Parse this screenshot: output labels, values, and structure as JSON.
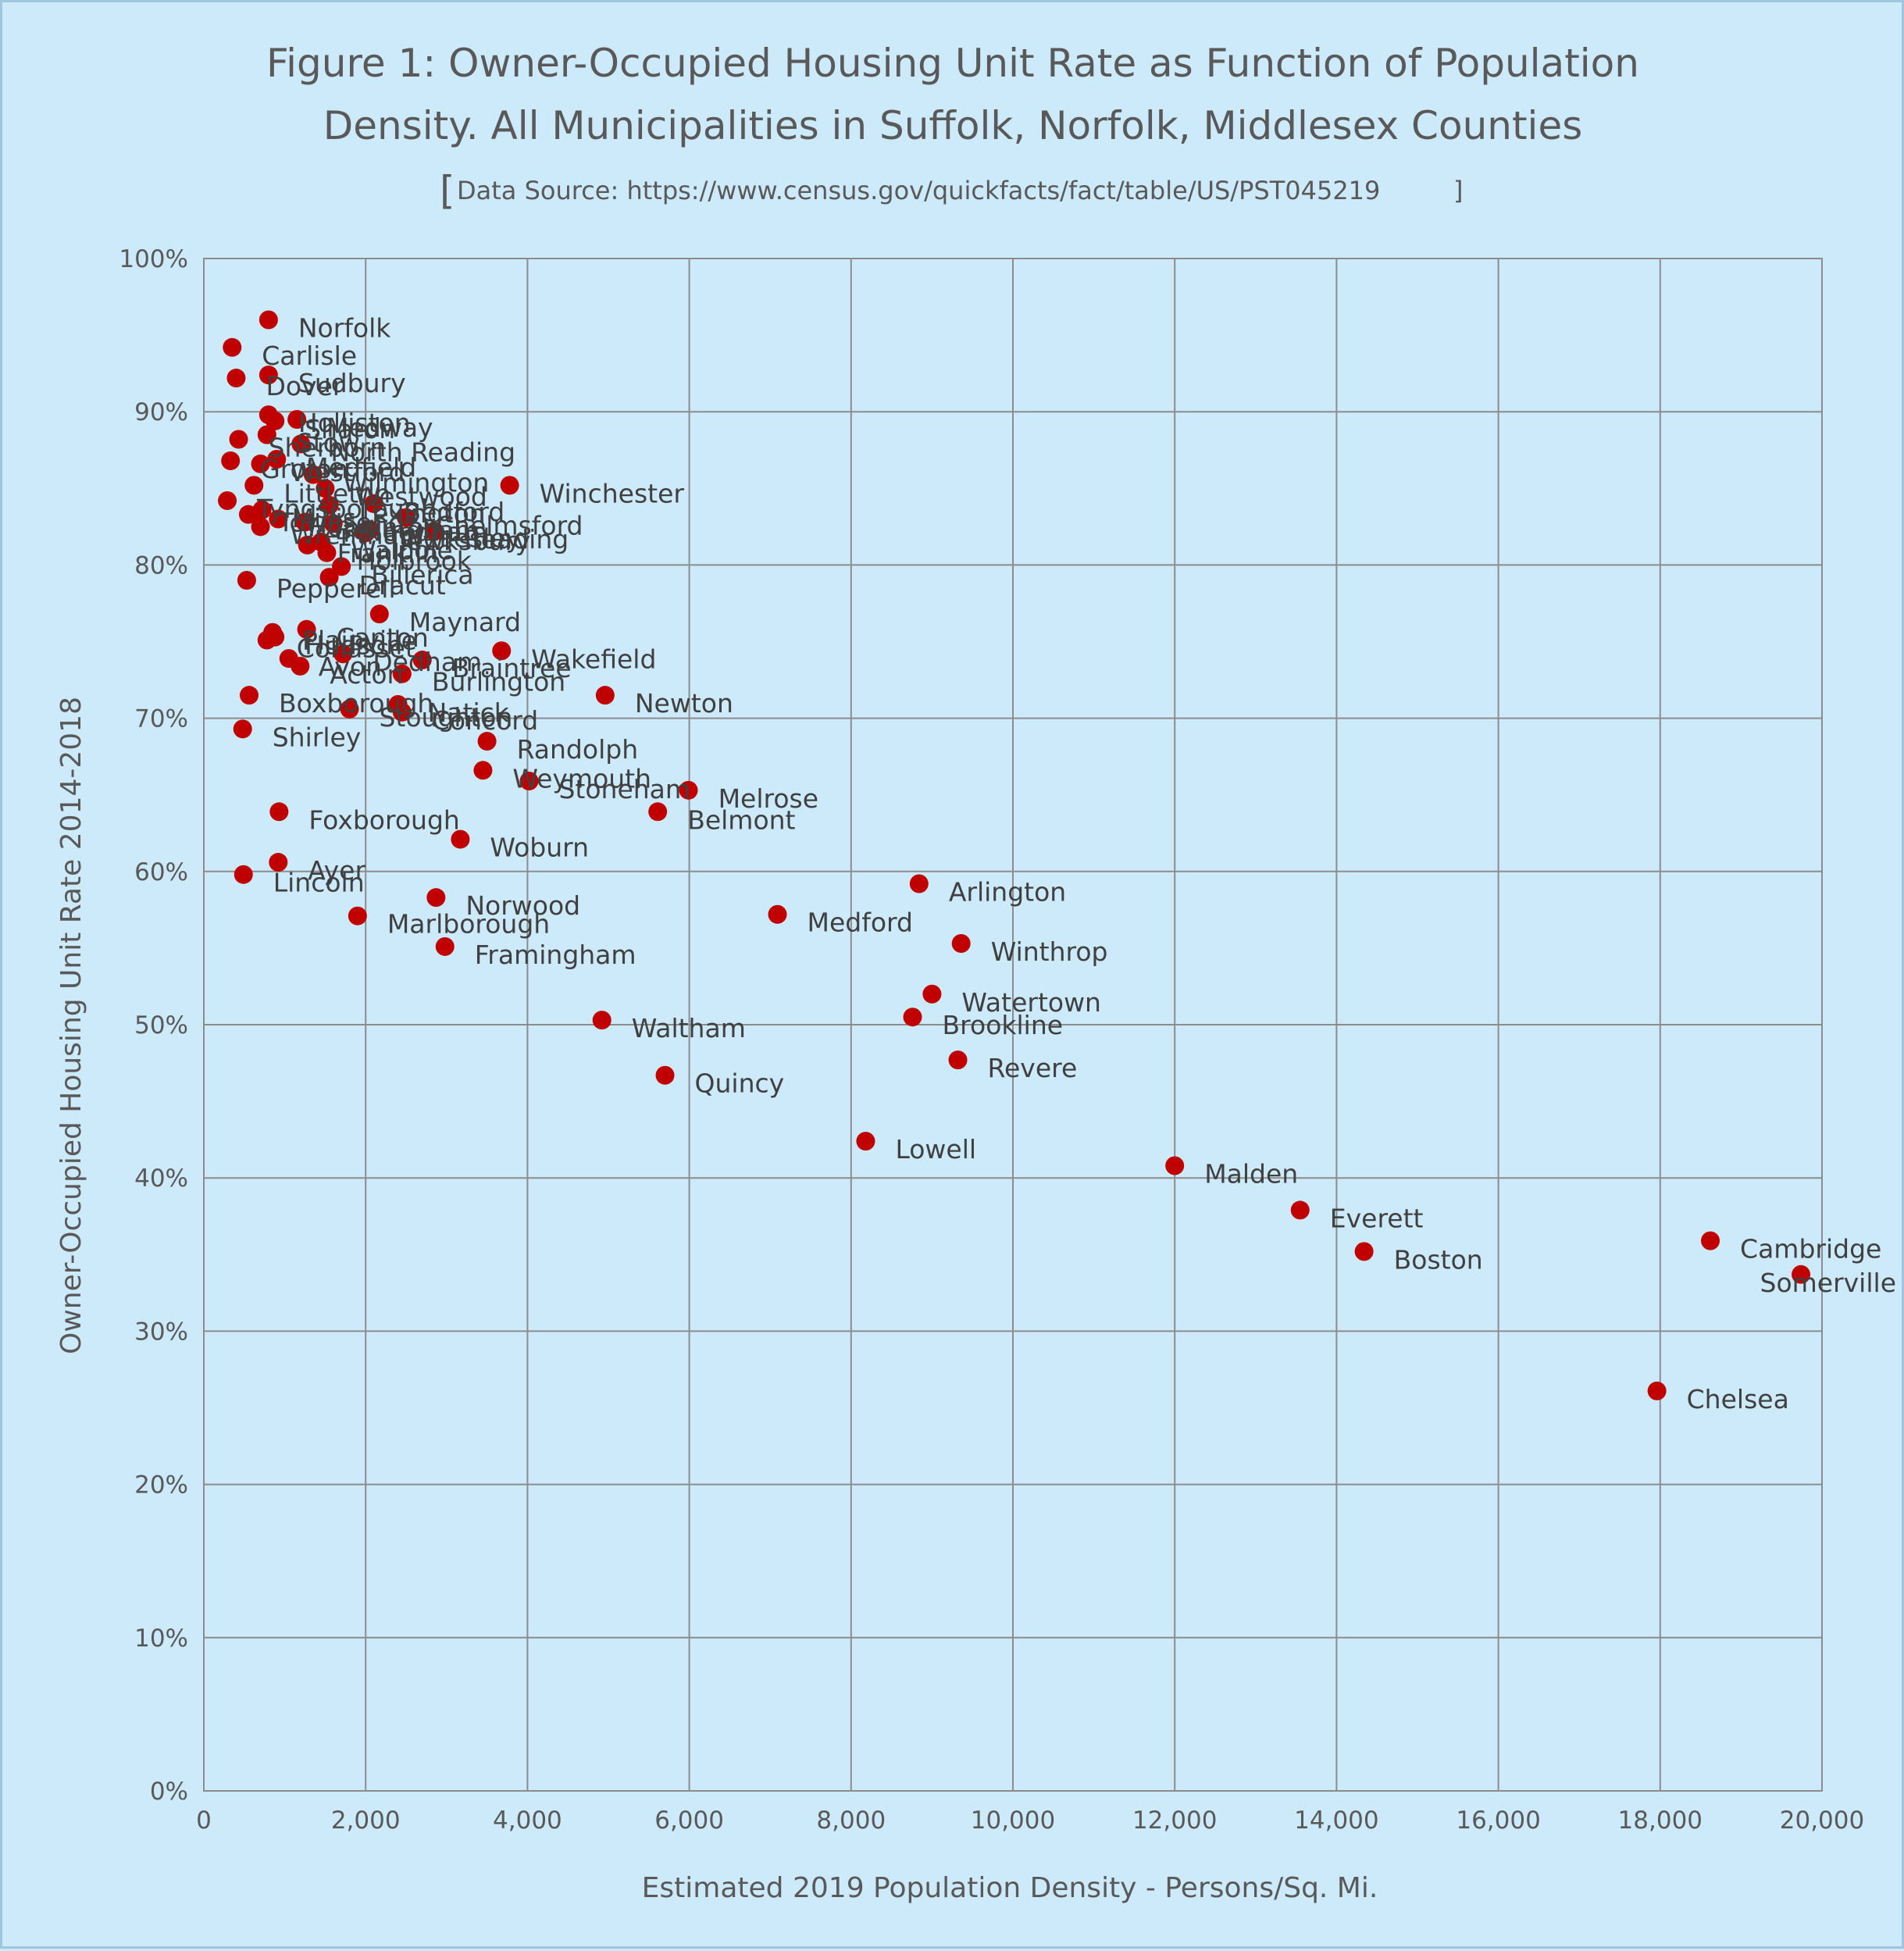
{
  "chart_data": {
    "type": "scatter",
    "title_line1": "Figure 1: Owner-Occupied Housing Unit Rate as Function of Population",
    "title_line2": "Density. All Municipalities in Suffolk, Norfolk, Middlesex Counties",
    "subtitle_open": "[",
    "subtitle": "Data Source: https://www.census.gov/quickfacts/fact/table/US/PST045219",
    "subtitle_close": "]",
    "xlabel": "Estimated 2019 Population Density - Persons/Sq. Mi.",
    "ylabel": "Owner-Occupied Housing Unit Rate 2014-2018",
    "xlim": [
      0,
      20000
    ],
    "ylim": [
      0,
      100
    ],
    "x_ticks": [
      0,
      2000,
      4000,
      6000,
      8000,
      10000,
      12000,
      14000,
      16000,
      18000,
      20000
    ],
    "x_tick_labels": [
      "0",
      "2,000",
      "4,000",
      "6,000",
      "8,000",
      "10,000",
      "12,000",
      "14,000",
      "16,000",
      "18,000",
      "20,000"
    ],
    "y_ticks": [
      0,
      10,
      20,
      30,
      40,
      50,
      60,
      70,
      80,
      90,
      100
    ],
    "y_tick_labels": [
      "0%",
      "10%",
      "20%",
      "30%",
      "40%",
      "50%",
      "60%",
      "70%",
      "80%",
      "90%",
      "100%"
    ],
    "grid": true,
    "marker_color": "#c00000",
    "points": [
      {
        "label": "Norfolk",
        "x": 800,
        "y": 96
      },
      {
        "label": "Carlisle",
        "x": 350,
        "y": 94.2
      },
      {
        "label": "Dover",
        "x": 400,
        "y": 92.2
      },
      {
        "label": "Sudbury",
        "x": 800,
        "y": 92.4
      },
      {
        "label": "Holliston",
        "x": 800,
        "y": 89.8
      },
      {
        "label": "Medway",
        "x": 1150,
        "y": 89.5
      },
      {
        "label": "Sherborn",
        "x": 430,
        "y": 88.2
      },
      {
        "label": "Stow",
        "x": 780,
        "y": 88.5
      },
      {
        "label": "Sharon",
        "x": 880,
        "y": 89.4
      },
      {
        "label": "North Reading",
        "x": 1200,
        "y": 87.9
      },
      {
        "label": "Groton",
        "x": 330,
        "y": 86.8
      },
      {
        "label": "Westford",
        "x": 700,
        "y": 86.6
      },
      {
        "label": "Medfield",
        "x": 900,
        "y": 86.9
      },
      {
        "label": "Wilmington",
        "x": 1350,
        "y": 85.9
      },
      {
        "label": "Winchester",
        "x": 3780,
        "y": 85.2
      },
      {
        "label": "Littleton",
        "x": 620,
        "y": 85.2
      },
      {
        "label": "Westwood",
        "x": 1500,
        "y": 85.0
      },
      {
        "label": "Tyngsborough",
        "x": 290,
        "y": 84.2
      },
      {
        "label": "Townsend",
        "x": 550,
        "y": 83.3
      },
      {
        "label": "Millis",
        "x": 720,
        "y": 83.6
      },
      {
        "label": "Hopkinton",
        "x": 920,
        "y": 83.0
      },
      {
        "label": "Bellingham",
        "x": 1250,
        "y": 82.8
      },
      {
        "label": "Lexington",
        "x": 1550,
        "y": 83.9
      },
      {
        "label": "Bedford",
        "x": 2100,
        "y": 84.0
      },
      {
        "label": "Chelmsford",
        "x": 2500,
        "y": 83.1
      },
      {
        "label": "Reading",
        "x": 2850,
        "y": 82.2
      },
      {
        "label": "Tewksbury",
        "x": 2000,
        "y": 82.1
      },
      {
        "label": "Wrentham",
        "x": 700,
        "y": 82.5
      },
      {
        "label": "Needham",
        "x": 1600,
        "y": 82.7
      },
      {
        "label": "Wellesley",
        "x": 2050,
        "y": 82.3
      },
      {
        "label": "Franklin",
        "x": 1280,
        "y": 81.3
      },
      {
        "label": "Walpole",
        "x": 1450,
        "y": 81.5
      },
      {
        "label": "Holbrook",
        "x": 1520,
        "y": 80.8
      },
      {
        "label": "Billerica",
        "x": 1700,
        "y": 79.9
      },
      {
        "label": "Dracut",
        "x": 1550,
        "y": 79.2
      },
      {
        "label": "Pepperell",
        "x": 530,
        "y": 79.0
      },
      {
        "label": "Maynard",
        "x": 2170,
        "y": 76.8
      },
      {
        "label": "Canton",
        "x": 1270,
        "y": 75.8
      },
      {
        "label": "Plainville",
        "x": 850,
        "y": 75.6
      },
      {
        "label": "Cohasset",
        "x": 780,
        "y": 75.1
      },
      {
        "label": "Hudson",
        "x": 880,
        "y": 75.3
      },
      {
        "label": "Wakefield",
        "x": 3680,
        "y": 74.4
      },
      {
        "label": "Braintree",
        "x": 2700,
        "y": 73.8
      },
      {
        "label": "Avon",
        "x": 1050,
        "y": 73.9
      },
      {
        "label": "Dedham",
        "x": 1720,
        "y": 74.2
      },
      {
        "label": "Acton",
        "x": 1190,
        "y": 73.4
      },
      {
        "label": "Burlington",
        "x": 2450,
        "y": 72.9
      },
      {
        "label": "Newton",
        "x": 4960,
        "y": 71.5
      },
      {
        "label": "Boxborough",
        "x": 560,
        "y": 71.5
      },
      {
        "label": "Stoughton",
        "x": 1800,
        "y": 70.6
      },
      {
        "label": "Natick",
        "x": 2400,
        "y": 70.9
      },
      {
        "label": "Concord",
        "x": 2450,
        "y": 70.4
      },
      {
        "label": "Shirley",
        "x": 480,
        "y": 69.3
      },
      {
        "label": "Randolph",
        "x": 3500,
        "y": 68.5
      },
      {
        "label": "Weymouth",
        "x": 3450,
        "y": 66.6
      },
      {
        "label": "Stoneham",
        "x": 4020,
        "y": 65.9
      },
      {
        "label": "Melrose",
        "x": 5990,
        "y": 65.3
      },
      {
        "label": "Belmont",
        "x": 5610,
        "y": 63.9
      },
      {
        "label": "Foxborough",
        "x": 930,
        "y": 63.9
      },
      {
        "label": "Woburn",
        "x": 3170,
        "y": 62.1
      },
      {
        "label": "Ayer",
        "x": 920,
        "y": 60.6
      },
      {
        "label": "Lincoln",
        "x": 490,
        "y": 59.8
      },
      {
        "label": "Arlington",
        "x": 8840,
        "y": 59.2
      },
      {
        "label": "Norwood",
        "x": 2870,
        "y": 58.3
      },
      {
        "label": "Marlborough",
        "x": 1900,
        "y": 57.1
      },
      {
        "label": "Medford",
        "x": 7090,
        "y": 57.2
      },
      {
        "label": "Winthrop",
        "x": 9360,
        "y": 55.3
      },
      {
        "label": "Framingham",
        "x": 2980,
        "y": 55.1
      },
      {
        "label": "Watertown",
        "x": 9000,
        "y": 52.0
      },
      {
        "label": "Brookline",
        "x": 8760,
        "y": 50.5
      },
      {
        "label": "Waltham",
        "x": 4920,
        "y": 50.3
      },
      {
        "label": "Revere",
        "x": 9320,
        "y": 47.7
      },
      {
        "label": "Quincy",
        "x": 5700,
        "y": 46.7
      },
      {
        "label": "Lowell",
        "x": 8180,
        "y": 42.4
      },
      {
        "label": "Malden",
        "x": 12000,
        "y": 40.8
      },
      {
        "label": "Everett",
        "x": 13550,
        "y": 37.9
      },
      {
        "label": "Cambridge",
        "x": 18620,
        "y": 35.9
      },
      {
        "label": "Boston",
        "x": 14340,
        "y": 35.2
      },
      {
        "label": "Somerville",
        "x": 19740,
        "y": 33.7
      },
      {
        "label": "Chelsea",
        "x": 17960,
        "y": 26.1
      }
    ]
  }
}
